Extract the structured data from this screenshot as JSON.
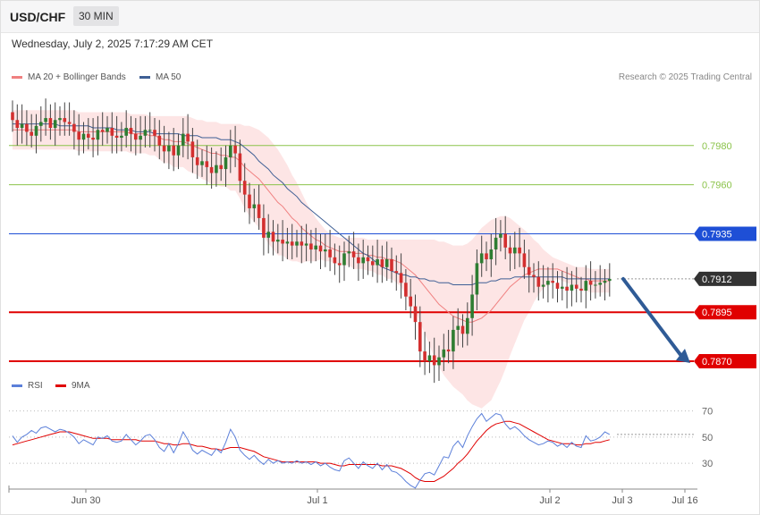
{
  "header": {
    "symbol": "USD/CHF",
    "timeframe": "30 MIN",
    "datetime": "Wednesday, July 2, 2025 7:17:29 AM CET",
    "credit": "Research © 2025 Trading Central"
  },
  "colors": {
    "bullish": "#2e7d32",
    "bearish": "#d32f2f",
    "ma20": "#f08080",
    "bands_fill": "#fde0e0",
    "ma50": "#3f5f95",
    "resistance_blue": "#1e4fd6",
    "support_red": "#e00000",
    "target_green": "#8bc34a",
    "rsi": "#5b7fd9",
    "rsi_ma": "#e00000",
    "arrow": "#2f5b96",
    "current_price_tag": "#333333"
  },
  "chart_data": [
    {
      "type": "candlestick",
      "legend": [
        "MA 20 + Bollinger Bands",
        "MA 50"
      ],
      "x_tick_labels": [
        "Jun 30",
        "Jul 1",
        "Jul 2",
        "Jul 3",
        "Jul 16"
      ],
      "ylim": [
        0.7865,
        0.8015
      ],
      "levels": [
        {
          "value": 0.798,
          "label": "0.7980",
          "kind": "target"
        },
        {
          "value": 0.796,
          "label": "0.7960",
          "kind": "target"
        },
        {
          "value": 0.7935,
          "label": "0.7935",
          "kind": "resistance"
        },
        {
          "value": 0.7912,
          "label": "0.7912",
          "kind": "current"
        },
        {
          "value": 0.7895,
          "label": "0.7895",
          "kind": "support"
        },
        {
          "value": 0.787,
          "label": "0.7870",
          "kind": "support"
        }
      ],
      "close": [
        0.7993,
        0.7989,
        0.7991,
        0.7987,
        0.7985,
        0.799,
        0.7992,
        0.7994,
        0.7989,
        0.7993,
        0.7994,
        0.7992,
        0.7991,
        0.7987,
        0.7983,
        0.7986,
        0.7984,
        0.7983,
        0.7988,
        0.7987,
        0.7989,
        0.7985,
        0.7984,
        0.7985,
        0.7989,
        0.7986,
        0.7983,
        0.7985,
        0.7988,
        0.7988,
        0.7985,
        0.798,
        0.7977,
        0.798,
        0.7975,
        0.798,
        0.7986,
        0.7982,
        0.7974,
        0.797,
        0.7972,
        0.7969,
        0.7966,
        0.797,
        0.7968,
        0.7974,
        0.798,
        0.7976,
        0.7962,
        0.7955,
        0.7948,
        0.795,
        0.7943,
        0.7933,
        0.7936,
        0.7931,
        0.7932,
        0.793,
        0.7931,
        0.7929,
        0.7931,
        0.7929,
        0.793,
        0.7927,
        0.7929,
        0.7926,
        0.7927,
        0.7923,
        0.792,
        0.7919,
        0.7925,
        0.7926,
        0.7923,
        0.792,
        0.7923,
        0.7921,
        0.7919,
        0.7922,
        0.7918,
        0.7922,
        0.7916,
        0.7915,
        0.791,
        0.7903,
        0.7898,
        0.789,
        0.7875,
        0.787,
        0.7873,
        0.7868,
        0.7872,
        0.7876,
        0.7875,
        0.7886,
        0.7888,
        0.7884,
        0.7892,
        0.7904,
        0.792,
        0.7925,
        0.7922,
        0.7927,
        0.7933,
        0.7935,
        0.7928,
        0.7925,
        0.7928,
        0.7925,
        0.7918,
        0.7914,
        0.7913,
        0.7908,
        0.7909,
        0.7911,
        0.791,
        0.7907,
        0.7908,
        0.7906,
        0.7909,
        0.7907,
        0.7906,
        0.7911,
        0.7909,
        0.7909,
        0.791,
        0.7911,
        0.7912
      ],
      "ma20": [
        0.7988,
        0.7988,
        0.7988,
        0.7988,
        0.7988,
        0.7988,
        0.7988,
        0.7988,
        0.7988,
        0.7988,
        0.7988,
        0.7988,
        0.7988,
        0.7988,
        0.7987,
        0.7987,
        0.7987,
        0.7987,
        0.7987,
        0.7987,
        0.7987,
        0.7987,
        0.7987,
        0.7987,
        0.7987,
        0.7986,
        0.7986,
        0.7986,
        0.7986,
        0.7985,
        0.7985,
        0.7984,
        0.7983,
        0.7983,
        0.7982,
        0.7982,
        0.7982,
        0.7981,
        0.798,
        0.7979,
        0.7978,
        0.7977,
        0.7976,
        0.7976,
        0.7975,
        0.7975,
        0.7974,
        0.7974,
        0.7972,
        0.7969,
        0.7967,
        0.7965,
        0.7963,
        0.796,
        0.7957,
        0.7954,
        0.7951,
        0.7949,
        0.7946,
        0.7943,
        0.7941,
        0.7938,
        0.7936,
        0.7934,
        0.7932,
        0.7931,
        0.7929,
        0.7928,
        0.7927,
        0.7926,
        0.7926,
        0.7926,
        0.7925,
        0.7925,
        0.7925,
        0.7924,
        0.7924,
        0.7923,
        0.7923,
        0.7922,
        0.7922,
        0.7921,
        0.792,
        0.7918,
        0.7916,
        0.7914,
        0.7911,
        0.7908,
        0.7905,
        0.7902,
        0.7899,
        0.7897,
        0.7895,
        0.7893,
        0.7892,
        0.7891,
        0.789,
        0.789,
        0.7891,
        0.7892,
        0.7894,
        0.7896,
        0.7899,
        0.7902,
        0.7905,
        0.7908,
        0.791,
        0.7912,
        0.7914,
        0.7915,
        0.7916,
        0.7917,
        0.7917,
        0.7917,
        0.7917,
        0.7917,
        0.7916,
        0.7915,
        0.7914,
        0.7913,
        0.7912,
        0.7912,
        0.7911,
        0.7911,
        0.7911,
        0.7911,
        0.7911
      ],
      "bb_upper": [
        0.7998,
        0.7998,
        0.7998,
        0.7998,
        0.7998,
        0.7998,
        0.7998,
        0.7998,
        0.7998,
        0.7998,
        0.7998,
        0.7998,
        0.7998,
        0.7998,
        0.7997,
        0.7997,
        0.7997,
        0.7997,
        0.7997,
        0.7997,
        0.7997,
        0.7997,
        0.7997,
        0.7997,
        0.7997,
        0.7996,
        0.7996,
        0.7996,
        0.7996,
        0.7995,
        0.7995,
        0.7995,
        0.7995,
        0.7995,
        0.7995,
        0.7995,
        0.7995,
        0.7995,
        0.7994,
        0.7993,
        0.7993,
        0.7992,
        0.7992,
        0.7992,
        0.7991,
        0.7991,
        0.7991,
        0.7991,
        0.7991,
        0.799,
        0.799,
        0.7989,
        0.7988,
        0.7986,
        0.7984,
        0.7981,
        0.7978,
        0.7974,
        0.797,
        0.7965,
        0.7961,
        0.7956,
        0.7951,
        0.7947,
        0.7943,
        0.794,
        0.7937,
        0.7935,
        0.7934,
        0.7933,
        0.7933,
        0.7933,
        0.7933,
        0.7933,
        0.7933,
        0.7932,
        0.7932,
        0.7932,
        0.7932,
        0.7932,
        0.7932,
        0.7932,
        0.7932,
        0.7932,
        0.7932,
        0.7932,
        0.7932,
        0.7932,
        0.7932,
        0.7932,
        0.7931,
        0.7931,
        0.793,
        0.7929,
        0.7929,
        0.7929,
        0.793,
        0.7932,
        0.7935,
        0.7938,
        0.794,
        0.7942,
        0.7943,
        0.7944,
        0.7944,
        0.7943,
        0.7941,
        0.7939,
        0.7937,
        0.7935,
        0.7932,
        0.793,
        0.7927,
        0.7925,
        0.7923,
        0.7922,
        0.7921,
        0.792,
        0.7919,
        0.7918,
        0.7918,
        0.7918,
        0.7917,
        0.7917,
        0.7917,
        0.7917,
        0.7917
      ],
      "bb_lower": [
        0.7978,
        0.7978,
        0.7978,
        0.7978,
        0.7978,
        0.7978,
        0.7978,
        0.7978,
        0.7978,
        0.7978,
        0.7978,
        0.7978,
        0.7978,
        0.7978,
        0.7977,
        0.7977,
        0.7977,
        0.7977,
        0.7977,
        0.7977,
        0.7977,
        0.7977,
        0.7977,
        0.7977,
        0.7977,
        0.7976,
        0.7976,
        0.7976,
        0.7976,
        0.7975,
        0.7975,
        0.7973,
        0.7971,
        0.7971,
        0.7969,
        0.7969,
        0.7969,
        0.7967,
        0.7966,
        0.7965,
        0.7963,
        0.7962,
        0.796,
        0.796,
        0.7959,
        0.7959,
        0.7957,
        0.7957,
        0.7953,
        0.7948,
        0.7944,
        0.7941,
        0.7938,
        0.7934,
        0.793,
        0.7927,
        0.7924,
        0.7924,
        0.7922,
        0.7921,
        0.7921,
        0.792,
        0.7921,
        0.7921,
        0.7921,
        0.7922,
        0.7921,
        0.7921,
        0.792,
        0.7919,
        0.7919,
        0.7919,
        0.7917,
        0.7917,
        0.7917,
        0.7916,
        0.7916,
        0.7914,
        0.7914,
        0.7912,
        0.7912,
        0.791,
        0.7908,
        0.7904,
        0.79,
        0.7896,
        0.789,
        0.7884,
        0.7878,
        0.7872,
        0.7867,
        0.7863,
        0.786,
        0.7857,
        0.7855,
        0.7853,
        0.785,
        0.7848,
        0.7847,
        0.7846,
        0.7848,
        0.785,
        0.7855,
        0.786,
        0.7866,
        0.7873,
        0.7879,
        0.7885,
        0.7891,
        0.7895,
        0.79,
        0.7904,
        0.7907,
        0.7909,
        0.7911,
        0.7912,
        0.7911,
        0.791,
        0.7909,
        0.7908,
        0.7906,
        0.7906,
        0.7905,
        0.7905,
        0.7905,
        0.7905,
        0.7905
      ],
      "ma50": [
        0.7991,
        0.7991,
        0.7991,
        0.7991,
        0.7991,
        0.7991,
        0.7991,
        0.7991,
        0.7991,
        0.7991,
        0.799,
        0.799,
        0.799,
        0.799,
        0.799,
        0.799,
        0.799,
        0.7989,
        0.7989,
        0.7989,
        0.7989,
        0.7989,
        0.7988,
        0.7988,
        0.7988,
        0.7988,
        0.7987,
        0.7987,
        0.7987,
        0.7987,
        0.7986,
        0.7986,
        0.7986,
        0.7986,
        0.7986,
        0.7986,
        0.7985,
        0.7985,
        0.7985,
        0.7985,
        0.7984,
        0.7984,
        0.7984,
        0.7984,
        0.7983,
        0.7983,
        0.7983,
        0.7982,
        0.7981,
        0.7979,
        0.7977,
        0.7975,
        0.7972,
        0.797,
        0.7968,
        0.7965,
        0.7963,
        0.7961,
        0.7958,
        0.7956,
        0.7954,
        0.7951,
        0.7949,
        0.7947,
        0.7945,
        0.7943,
        0.7941,
        0.7939,
        0.7937,
        0.7935,
        0.7933,
        0.7931,
        0.7929,
        0.7927,
        0.7925,
        0.7924,
        0.7922,
        0.792,
        0.7918,
        0.7917,
        0.7916,
        0.7915,
        0.7914,
        0.7914,
        0.7913,
        0.7913,
        0.7912,
        0.7912,
        0.7911,
        0.7911,
        0.791,
        0.791,
        0.791,
        0.7909,
        0.7909,
        0.7909,
        0.7909,
        0.7909,
        0.791,
        0.791,
        0.791,
        0.7911,
        0.7911,
        0.7912,
        0.7912,
        0.7912,
        0.7913,
        0.7913,
        0.7913,
        0.7913,
        0.7913,
        0.7913,
        0.7913,
        0.7913,
        0.7913,
        0.7913,
        0.7913,
        0.7912,
        0.7912,
        0.7912,
        0.7912,
        0.7912,
        0.7912,
        0.7912,
        0.7912,
        0.7912,
        0.7912
      ],
      "forecast_arrow": {
        "from": 0.7912,
        "to": 0.787
      }
    },
    {
      "type": "line",
      "legend": [
        "RSI",
        "9MA"
      ],
      "y_tick_labels": [
        "70",
        "50",
        "30"
      ],
      "ylim": [
        15,
        80
      ],
      "rsi": [
        51,
        46,
        50,
        52,
        55,
        53,
        57,
        58,
        56,
        54,
        56,
        55,
        53,
        50,
        45,
        48,
        46,
        44,
        50,
        49,
        51,
        47,
        46,
        47,
        52,
        48,
        44,
        47,
        51,
        52,
        48,
        42,
        39,
        45,
        38,
        45,
        54,
        48,
        40,
        37,
        40,
        38,
        36,
        41,
        38,
        46,
        56,
        50,
        40,
        36,
        33,
        36,
        32,
        29,
        33,
        30,
        32,
        30,
        31,
        30,
        32,
        30,
        31,
        29,
        31,
        28,
        30,
        27,
        25,
        24,
        32,
        34,
        30,
        26,
        31,
        28,
        26,
        30,
        25,
        29,
        24,
        23,
        20,
        16,
        13,
        11,
        17,
        22,
        23,
        21,
        28,
        35,
        34,
        43,
        47,
        42,
        51,
        58,
        64,
        68,
        62,
        65,
        68,
        67,
        60,
        56,
        58,
        55,
        51,
        48,
        46,
        44,
        45,
        47,
        46,
        43,
        45,
        42,
        46,
        43,
        42,
        51,
        47,
        48,
        50,
        54,
        52
      ],
      "rsi_ma": [
        44,
        45,
        46,
        47,
        48,
        49,
        50,
        51,
        52,
        53,
        54,
        54,
        54,
        53,
        52,
        51,
        50,
        49,
        49,
        49,
        49,
        48,
        48,
        48,
        48,
        48,
        48,
        47,
        47,
        47,
        47,
        46,
        45,
        45,
        44,
        44,
        45,
        45,
        44,
        43,
        43,
        42,
        41,
        41,
        40,
        41,
        42,
        42,
        42,
        41,
        40,
        39,
        37,
        35,
        34,
        33,
        32,
        31,
        31,
        31,
        31,
        31,
        31,
        31,
        31,
        30,
        30,
        30,
        29,
        28,
        28,
        29,
        29,
        29,
        29,
        29,
        29,
        29,
        28,
        28,
        28,
        27,
        26,
        24,
        22,
        19,
        17,
        16,
        16,
        16,
        18,
        20,
        23,
        26,
        30,
        33,
        37,
        42,
        47,
        51,
        55,
        58,
        60,
        61,
        62,
        62,
        61,
        60,
        58,
        56,
        54,
        52,
        50,
        48,
        47,
        46,
        45,
        45,
        45,
        44,
        44,
        45,
        45,
        46,
        46,
        47,
        48
      ]
    }
  ]
}
